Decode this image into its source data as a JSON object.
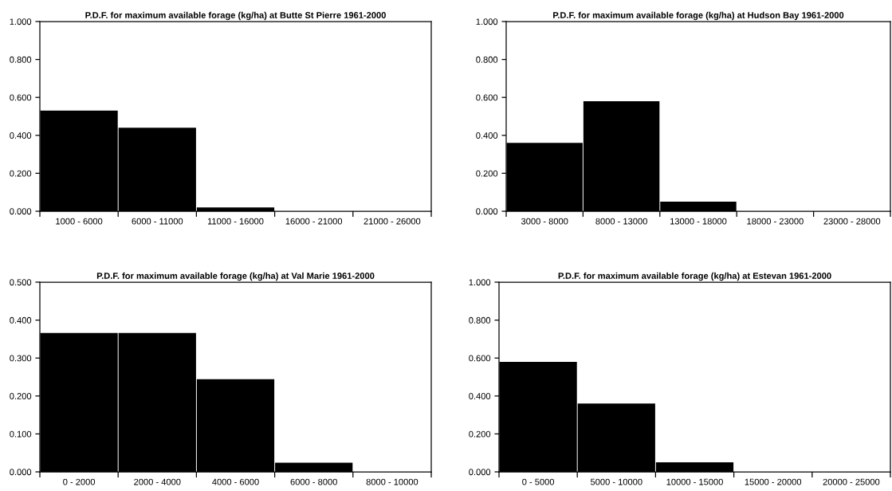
{
  "chart_data": [
    {
      "type": "bar",
      "title": "P.D.F. for maximum available forage (kg/ha) at Butte St Pierre 1961-2000",
      "categories": [
        "1000 - 6000",
        "6000 - 11000",
        "11000 - 16000",
        "16000 - 21000",
        "21000 - 26000"
      ],
      "values": [
        0.53,
        0.44,
        0.02,
        0,
        0
      ],
      "color": "#000000",
      "ylim": [
        0,
        1
      ],
      "yticks": [
        {
          "value": 0,
          "label": "0.000"
        },
        {
          "value": 0.2,
          "label": "0.200"
        },
        {
          "value": 0.4,
          "label": "0.400"
        },
        {
          "value": 0.6,
          "label": "0.600"
        },
        {
          "value": 0.8,
          "label": "0.800"
        },
        {
          "value": 1,
          "label": "1.000"
        }
      ],
      "grid": false,
      "legend": false
    },
    {
      "type": "bar",
      "title": "P.D.F. for maximum available forage (kg/ha) at Hudson Bay 1961-2000",
      "categories": [
        "3000 - 8000",
        "8000 - 13000",
        "13000 - 18000",
        "18000 - 23000",
        "23000 - 28000"
      ],
      "values": [
        0.36,
        0.58,
        0.05,
        0,
        0
      ],
      "color": "#000000",
      "ylim": [
        0,
        1
      ],
      "yticks": [
        {
          "value": 0,
          "label": "0.000"
        },
        {
          "value": 0.2,
          "label": "0.200"
        },
        {
          "value": 0.4,
          "label": "0.400"
        },
        {
          "value": 0.6,
          "label": "0.600"
        },
        {
          "value": 0.8,
          "label": "0.800"
        },
        {
          "value": 1,
          "label": "1.000"
        }
      ],
      "grid": false,
      "legend": false
    },
    {
      "type": "bar",
      "title": "P.D.F. for maximum available forage (kg/ha) at Val Marie 1961-2000",
      "categories": [
        "0 - 2000",
        "2000 - 4000",
        "4000 - 6000",
        "6000 - 8000",
        "8000 - 10000"
      ],
      "values": [
        0.366,
        0.366,
        0.244,
        0.024,
        0
      ],
      "color": "#000000",
      "ylim": [
        0,
        0.5
      ],
      "yticks": [
        {
          "value": 0,
          "label": "0.000"
        },
        {
          "value": 0.1,
          "label": "0.100"
        },
        {
          "value": 0.2,
          "label": "0.200"
        },
        {
          "value": 0.3,
          "label": "0.300"
        },
        {
          "value": 0.4,
          "label": "0.400"
        },
        {
          "value": 0.5,
          "label": "0.500"
        }
      ],
      "grid": false,
      "legend": false
    },
    {
      "type": "bar",
      "title": "P.D.F. for maximum available forage (kg/ha) at Estevan 1961-2000",
      "categories": [
        "0 - 5000",
        "5000 - 10000",
        "10000 - 15000",
        "15000 - 20000",
        "20000 - 25000"
      ],
      "values": [
        0.58,
        0.36,
        0.05,
        0,
        0
      ],
      "color": "#000000",
      "ylim": [
        0,
        1
      ],
      "yticks": [
        {
          "value": 0,
          "label": "0.000"
        },
        {
          "value": 0.2,
          "label": "0.200"
        },
        {
          "value": 0.4,
          "label": "0.400"
        },
        {
          "value": 0.6,
          "label": "0.600"
        },
        {
          "value": 0.8,
          "label": "0.800"
        },
        {
          "value": 1,
          "label": "1.000"
        }
      ],
      "grid": false,
      "legend": false
    }
  ]
}
